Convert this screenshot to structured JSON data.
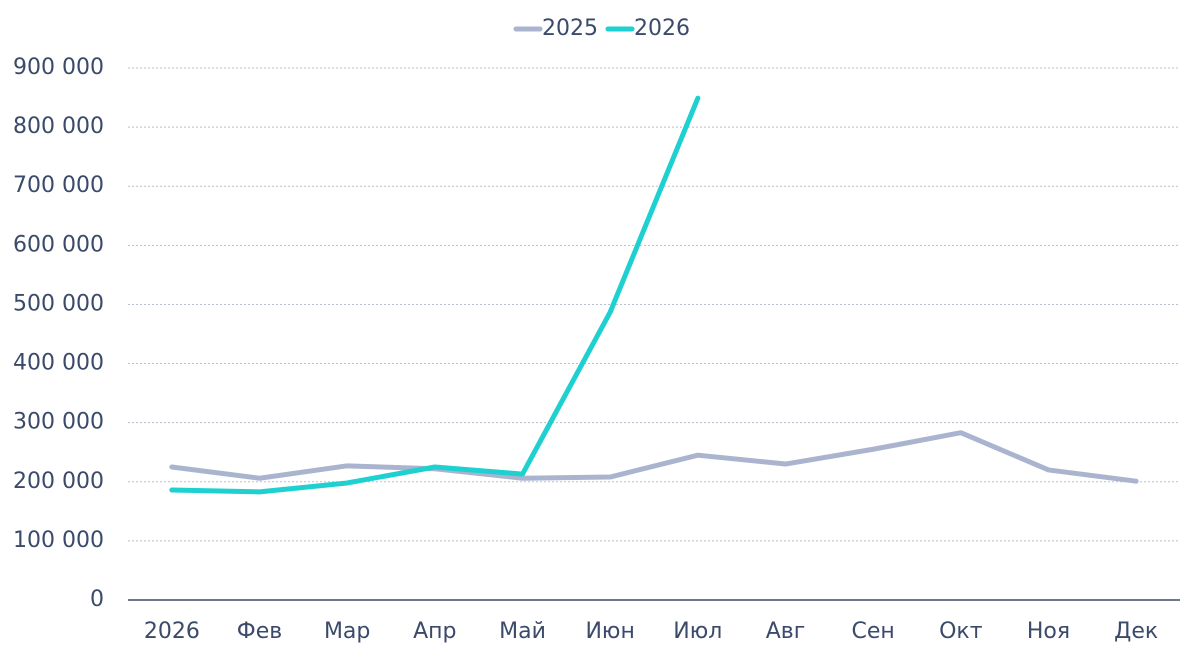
{
  "chart_data": {
    "type": "line",
    "categories": [
      "2026",
      "Фев",
      "Мар",
      "Апр",
      "Май",
      "Июн",
      "Июл",
      "Авг",
      "Сен",
      "Окт",
      "Ноя",
      "Дек"
    ],
    "series": [
      {
        "name": "2025",
        "color": "#aab4cf",
        "values": [
          225000,
          206000,
          227000,
          222000,
          206000,
          208000,
          245000,
          230000,
          255000,
          283000,
          220000,
          201000
        ]
      },
      {
        "name": "2026",
        "color": "#1fd0d0",
        "values": [
          186000,
          183000,
          198000,
          225000,
          213000,
          487000,
          849000,
          null,
          null,
          null,
          null,
          null
        ]
      }
    ],
    "ylim": [
      0,
      900000
    ],
    "yticks": [
      0,
      {
        "value": 100000,
        "label": "100 000"
      },
      {
        "value": 200000,
        "label": "200 000"
      },
      {
        "value": 300000,
        "label": "300 000"
      },
      {
        "value": 400000,
        "label": "400 000"
      },
      {
        "value": 500000,
        "label": "500 000"
      },
      {
        "value": 600000,
        "label": "600 000"
      },
      {
        "value": 700000,
        "label": "700 000"
      },
      {
        "value": 800000,
        "label": "800 000"
      },
      {
        "value": 900000,
        "label": "900 000"
      }
    ],
    "grid": true,
    "legend": "top"
  }
}
